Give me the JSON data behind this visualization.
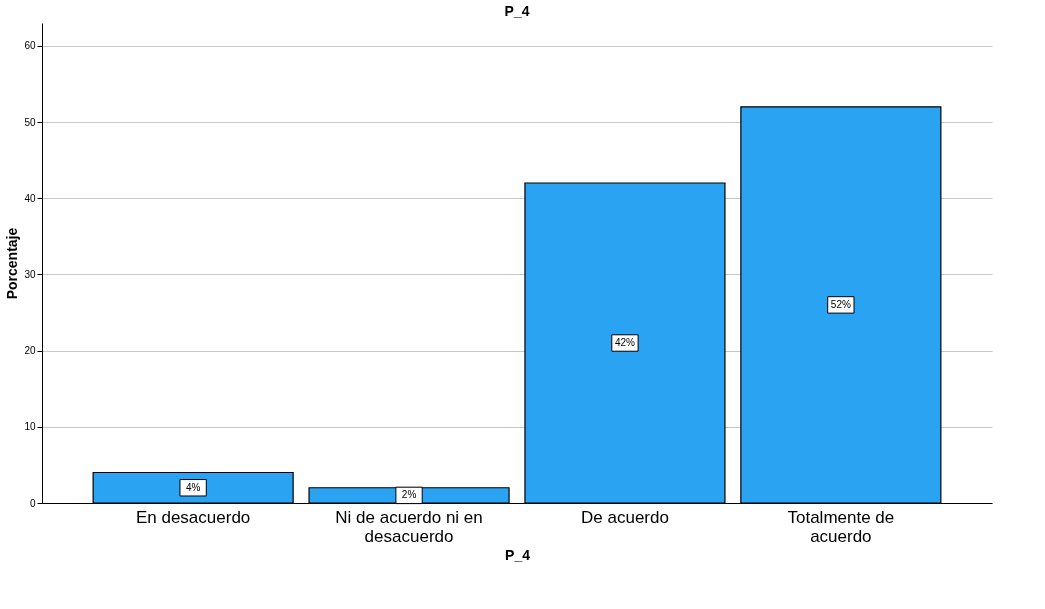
{
  "chart_data": {
    "type": "bar",
    "title": "P_4",
    "xlabel": "P_4",
    "ylabel": "Porcentaje",
    "categories": [
      "En desacuerdo",
      "Ni de acuerdo ni en desacuerdo",
      "De acuerdo",
      "Totalmente de acuerdo"
    ],
    "values": [
      4,
      2,
      42,
      52
    ],
    "value_labels": [
      "4%",
      "2%",
      "42%",
      "52%"
    ],
    "color": "#2aa4f2",
    "ylim": [
      0,
      63
    ],
    "yticks": [
      0,
      10,
      20,
      30,
      40,
      50,
      60
    ],
    "grid": "y"
  }
}
